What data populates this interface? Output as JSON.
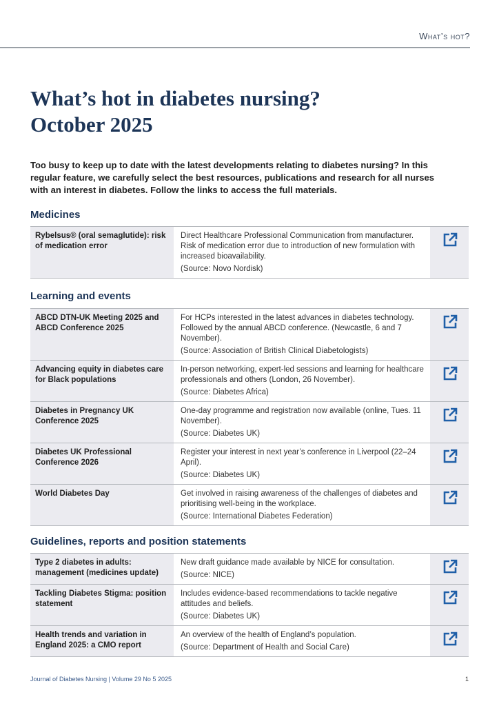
{
  "header": {
    "running_title": "What’s hot?"
  },
  "title_line1": "What’s hot in diabetes nursing?",
  "title_line2": "October 2025",
  "intro": "Too busy to keep up to date with the latest developments relating to diabetes nursing? In this regular feature, we carefully select the best resources, publications and research for all nurses with an interest in diabetes. Follow the links to access the full materials.",
  "sections": [
    {
      "heading": "Medicines",
      "items": [
        {
          "title": "Rybelsus® (oral semaglutide): risk of medication error",
          "desc": "Direct Healthcare Professional Communication from manufacturer. Risk of medication error due to introduction of new formulation with increased bioavailability.",
          "source": "(Source: Novo Nordisk)"
        }
      ]
    },
    {
      "heading": "Learning and events",
      "items": [
        {
          "title": "ABCD DTN-UK Meeting 2025 and ABCD Conference 2025",
          "desc": "For HCPs interested in the latest advances in diabetes technology. Followed by the annual ABCD conference. (Newcastle, 6 and 7 November).",
          "source": "(Source: Association of British Clinical Diabetologists)"
        },
        {
          "title": "Advancing equity in diabetes care for Black populations",
          "desc": "In-person networking, expert-led sessions and learning for healthcare professionals and others (London, 26 November).",
          "source": "(Source: Diabetes Africa)"
        },
        {
          "title": "Diabetes in Pregnancy UK Conference 2025",
          "desc": "One-day programme and registration now available (online, Tues. 11 November).",
          "source": "(Source: Diabetes UK)"
        },
        {
          "title": "Diabetes UK Professional Conference 2026",
          "desc": "Register your interest in next year’s conference in Liverpool (22–24 April).",
          "source": "(Source: Diabetes UK)"
        },
        {
          "title": "World Diabetes Day",
          "desc": "Get involved in raising awareness of the challenges of diabetes and prioritising well-being in the workplace.",
          "source": "(Source: International Diabetes Federation)"
        }
      ]
    },
    {
      "heading": "Guidelines, reports and position statements",
      "items": [
        {
          "title": "Type 2 diabetes in adults: management (medicines update)",
          "desc": "New draft guidance made available by NICE for consultation.",
          "source": "(Source: NICE)"
        },
        {
          "title": "Tackling Diabetes Stigma: position statement",
          "desc": "Includes evidence-based recommendations to tackle negative attitudes and beliefs.",
          "source": "(Source: Diabetes UK)"
        },
        {
          "title": "Health trends and variation in England 2025: a CMO report",
          "desc": "An overview of the health of England’s population.",
          "source": "(Source: Department of Health and Social Care)"
        }
      ]
    }
  ],
  "footer": {
    "journal": "Journal of Diabetes Nursing | Volume 29 No 5 2025",
    "page": "1"
  },
  "colors": {
    "title": "#1d3557",
    "link_icon": "#1f5fa8",
    "row_shade": "#ebebf0"
  },
  "icons": {
    "link": "external-link-icon"
  }
}
